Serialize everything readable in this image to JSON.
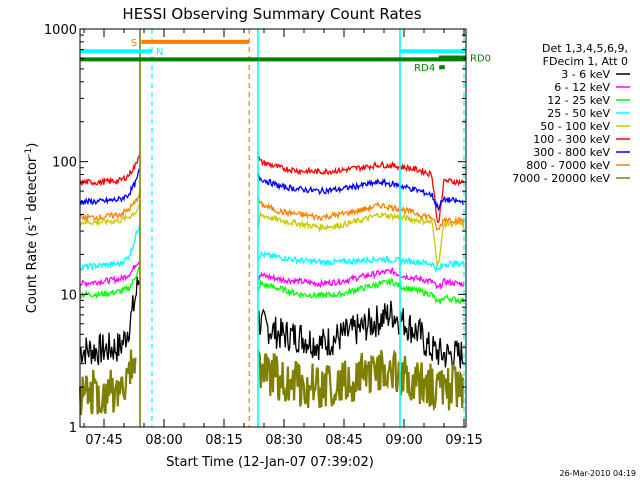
{
  "chart_data": {
    "type": "line",
    "title": "HESSI Observing Summary Count Rates",
    "xlabel": "Start Time (12-Jan-07 07:39:02)",
    "ylabel": "Count Rate (s",
    "ylabel_sup1": "-1",
    "ylabel_mid": " detector",
    "ylabel_sup2": "-1",
    "ylabel_end": ")",
    "y_scale": "log",
    "ylim": [
      1,
      1000
    ],
    "xlim_minutes": [
      0,
      96.5
    ],
    "x_ticks": [
      {
        "label": "07:45",
        "minute": 6
      },
      {
        "label": "08:00",
        "minute": 21
      },
      {
        "label": "08:15",
        "minute": 36
      },
      {
        "label": "08:30",
        "minute": 51
      },
      {
        "label": "08:45",
        "minute": 66
      },
      {
        "label": "09:00",
        "minute": 81
      },
      {
        "label": "09:15",
        "minute": 96
      }
    ],
    "y_ticks": [
      {
        "label": "1",
        "value": 1
      },
      {
        "label": "10",
        "value": 10
      },
      {
        "label": "100",
        "value": 100
      },
      {
        "label": "1000",
        "value": 1000
      }
    ],
    "legend_position": "right",
    "legend_header": [
      "Det 1,3,4,5,6,9,",
      "FDecim 1, Att 0"
    ],
    "series": [
      {
        "name": "3 - 6 keV",
        "color": "#000000",
        "segments": [
          {
            "x": [
              0,
              5,
              10,
              11,
              12,
              13,
              13.5,
              14,
              14.5,
              15
            ],
            "y": [
              3.8,
              3.8,
              4.0,
              4.5,
              5.5,
              7,
              8.5,
              10,
              12,
              14
            ]
          },
          {
            "x": [
              44.5,
              45,
              50,
              55,
              60,
              65,
              70,
              75,
              78,
              80,
              85,
              87,
              89,
              91,
              95,
              96
            ],
            "y": [
              7,
              6,
              5,
              4.8,
              4.2,
              4.8,
              5.5,
              6.5,
              7.2,
              6.5,
              5,
              4,
              3.7,
              3.5,
              3.5,
              3.5
            ]
          }
        ]
      },
      {
        "name": "6 - 12 keV",
        "color": "#ff00ff",
        "segments": [
          {
            "x": [
              0,
              5,
              10,
              12,
              13,
              14,
              15
            ],
            "y": [
              12,
              12.5,
              13,
              14,
              15,
              17,
              18
            ]
          },
          {
            "x": [
              44.5,
              45,
              50,
              55,
              60,
              65,
              70,
              75,
              78,
              80,
              85,
              88,
              89.5,
              91,
              95,
              96
            ],
            "y": [
              13,
              14,
              13,
              12.5,
              12,
              12.5,
              13.5,
              14.5,
              15,
              14,
              13,
              12.5,
              11,
              12.5,
              12,
              12
            ]
          }
        ]
      },
      {
        "name": "12 - 25 keV",
        "color": "#00ff00",
        "segments": [
          {
            "x": [
              0,
              5,
              10,
              12,
              13,
              14,
              15
            ],
            "y": [
              10,
              10,
              10.5,
              11,
              12,
              14,
              16
            ]
          },
          {
            "x": [
              44.5,
              45,
              50,
              55,
              60,
              65,
              70,
              75,
              78,
              80,
              85,
              88,
              89.5,
              91,
              95,
              96
            ],
            "y": [
              10,
              12,
              11,
              10,
              9.8,
              10,
              11,
              12,
              12.5,
              11.5,
              10.5,
              10,
              8.5,
              9.5,
              9,
              9
            ]
          }
        ]
      },
      {
        "name": "25 - 50 keV",
        "color": "#00ffff",
        "segments": [
          {
            "x": [
              0,
              5,
              10,
              12,
              13,
              14,
              15
            ],
            "y": [
              16,
              16.5,
              17,
              19,
              22,
              28,
              35
            ]
          },
          {
            "x": [
              44.5,
              45,
              50,
              55,
              60,
              65,
              70,
              75,
              80,
              85,
              88,
              89.5,
              91,
              95,
              96
            ],
            "y": [
              19,
              20,
              19,
              18,
              17.5,
              17.5,
              18,
              18.5,
              18,
              17.5,
              17,
              15,
              17,
              17,
              17
            ]
          }
        ]
      },
      {
        "name": "50 - 100 keV",
        "color": "#ccc800",
        "segments": [
          {
            "x": [
              0,
              5,
              10,
              12,
              14,
              15
            ],
            "y": [
              35,
              35,
              36,
              38,
              42,
              48
            ]
          },
          {
            "x": [
              44.5,
              45,
              50,
              55,
              60,
              65,
              70,
              75,
              80,
              85,
              88,
              89.5,
              91,
              95,
              96
            ],
            "y": [
              30,
              40,
              36,
              34,
              32,
              33,
              36,
              40,
              38,
              36,
              35,
              16,
              34,
              34,
              33
            ]
          }
        ]
      },
      {
        "name": "100 - 300 keV",
        "color": "#ff0000",
        "segments": [
          {
            "x": [
              0,
              5,
              10,
              12,
              14,
              15
            ],
            "y": [
              70,
              70,
              72,
              78,
              95,
              120
            ]
          },
          {
            "x": [
              44.5,
              45,
              50,
              55,
              60,
              65,
              70,
              75,
              80,
              85,
              88,
              89.5,
              91,
              95,
              96
            ],
            "y": [
              110,
              100,
              90,
              85,
              84,
              86,
              90,
              95,
              92,
              86,
              80,
              32,
              72,
              70,
              70
            ]
          }
        ]
      },
      {
        "name": "300 - 800 keV",
        "color": "#0000ff",
        "segments": [
          {
            "x": [
              0,
              5,
              10,
              12,
              14,
              15
            ],
            "y": [
              50,
              50,
              52,
              56,
              70,
              90
            ]
          },
          {
            "x": [
              44.5,
              45,
              50,
              55,
              60,
              65,
              70,
              75,
              80,
              85,
              88,
              89.5,
              91,
              95,
              96
            ],
            "y": [
              80,
              75,
              65,
              62,
              60,
              62,
              66,
              70,
              66,
              60,
              56,
              45,
              52,
              50,
              50
            ]
          }
        ]
      },
      {
        "name": "800 - 7000 keV",
        "color": "#ff8000",
        "segments": [
          {
            "x": [
              0,
              5,
              10,
              12,
              14,
              15
            ],
            "y": [
              38,
              38,
              40,
              43,
              50,
              60
            ]
          },
          {
            "x": [
              44.5,
              45,
              50,
              55,
              60,
              65,
              70,
              75,
              80,
              85,
              88,
              89.5,
              91,
              95,
              96
            ],
            "y": [
              55,
              48,
              42,
              40,
              38,
              40,
              43,
              47,
              44,
              40,
              38,
              30,
              37,
              36,
              36
            ]
          }
        ]
      },
      {
        "name": "7000 - 20000 keV",
        "color": "#808000",
        "segments": [
          {
            "x": [
              0,
              5,
              10,
              12,
              13,
              14
            ],
            "y": [
              1.8,
              1.8,
              1.9,
              2.2,
              2.8,
              3.5
            ]
          },
          {
            "x": [
              44.5,
              45,
              50,
              55,
              60,
              65,
              70,
              75,
              80,
              85,
              90,
              96
            ],
            "y": [
              2.8,
              2.6,
              2.3,
              2.1,
              2.0,
              2.1,
              2.4,
              2.8,
              2.4,
              2.1,
              2.0,
              2.0
            ]
          }
        ]
      }
    ],
    "vertical_markers": [
      {
        "minute": 15,
        "color": "#808000",
        "style": "solid"
      },
      {
        "minute": 18,
        "color": "#00ffff",
        "style": "dashed"
      },
      {
        "minute": 42.3,
        "color": "#ff8000",
        "style": "dashed"
      },
      {
        "minute": 44.5,
        "color": "#00ffff",
        "style": "solid"
      },
      {
        "minute": 80,
        "color": "#00ffff",
        "style": "solid"
      },
      {
        "minute": 96,
        "color": "#00ffff",
        "style": "dashed"
      }
    ],
    "interval_bars": [
      {
        "label": "S",
        "color": "#ff8000",
        "x_start": 15.3,
        "x_end": 42.3,
        "y": 800,
        "label_side": "left"
      },
      {
        "label": "N",
        "color": "#00ffff",
        "x_start": 0,
        "x_end": 18,
        "y": 680,
        "label_side": "right"
      },
      {
        "label": "",
        "color": "#00ffff",
        "x_start": 80,
        "x_end": 96.5,
        "y": 680,
        "label_side": "none"
      },
      {
        "label": "",
        "color": "#008000",
        "x_start": 0,
        "x_end": 96.5,
        "y": 590,
        "label_side": "none"
      },
      {
        "label": "RD0",
        "color": "#008000",
        "x_start": 89.7,
        "x_end": 96.5,
        "y": 610,
        "label_side": "right"
      },
      {
        "label": "RD4",
        "color": "#008000",
        "x_start": 89.8,
        "x_end": 91.2,
        "y": 515,
        "label_side": "left"
      }
    ],
    "footer_timestamp": "26-Mar-2010 04:19"
  }
}
